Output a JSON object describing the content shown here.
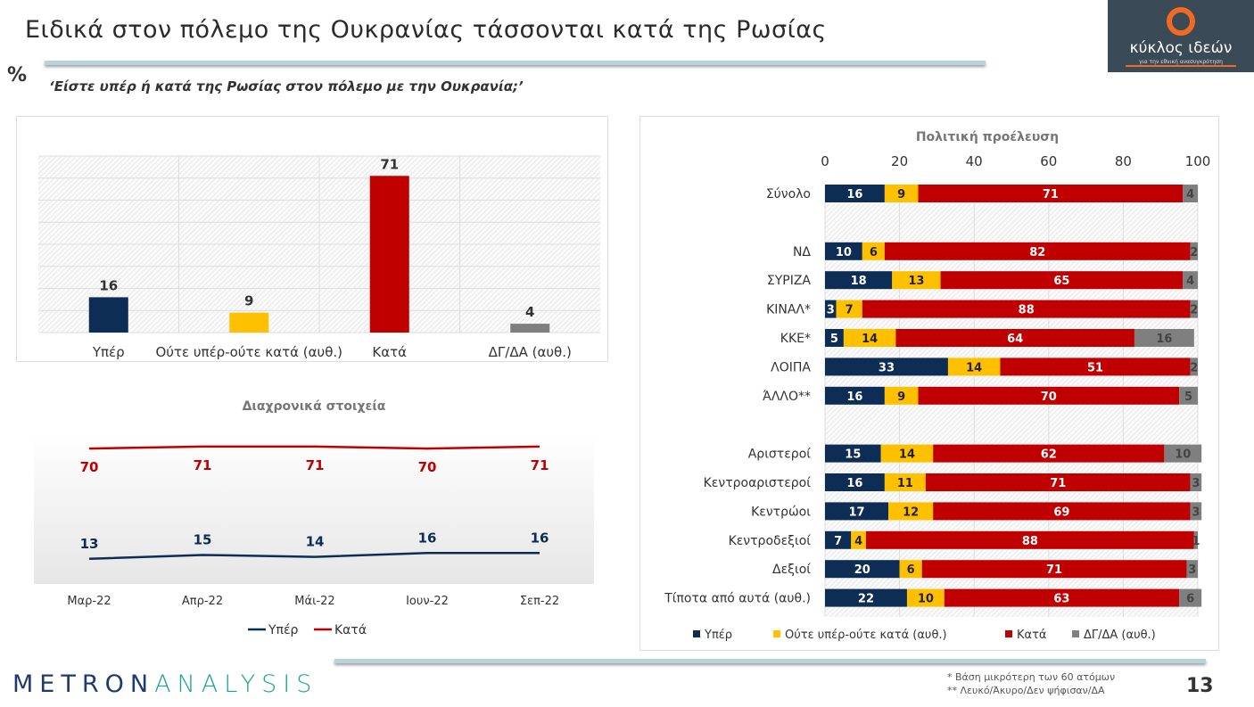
{
  "header": {
    "title": "Ειδικά στον πόλεμο της Ουκρανίας τάσσονται κατά της Ρωσίας",
    "percent_sign": "%",
    "question": "‘Είστε υπέρ ή κατά της Ρωσίας στον πόλεμο με την Ουκρανία;’"
  },
  "logo": {
    "name": "κύκλος ιδεών",
    "tagline": "για την εθνική ανασυγκρότηση"
  },
  "footer": {
    "brand_a": "METRON",
    "brand_b": "ANALYSIS",
    "note1": "*  Βάση μικρότερη των 60 ατόμων",
    "note2": "** Λευκό/Άκυρο/Δεν ψήφισαν/ΔΑ",
    "page_number": "13"
  },
  "colors": {
    "yper": "#0d2d55",
    "oute": "#ffc000",
    "kata": "#c00000",
    "dk": "#7f7f7f"
  },
  "chart_data": [
    {
      "type": "bar",
      "categories": [
        "Υπέρ",
        "Ούτε υπέρ-ούτε κατά (αυθ.)",
        "Κατά",
        "ΔΓ/ΔΑ (αυθ.)"
      ],
      "values": [
        16,
        9,
        71,
        4
      ],
      "ylim": [
        0,
        80
      ],
      "grid": true
    },
    {
      "type": "line",
      "title": "Διαχρονικά στοιχεία",
      "categories": [
        "Μαρ-22",
        "Απρ-22",
        "Μάι-22",
        "Ιουν-22",
        "Σεπ-22"
      ],
      "series": [
        {
          "name": "Υπέρ",
          "values": [
            13,
            15,
            14,
            16,
            16
          ]
        },
        {
          "name": "Κατά",
          "values": [
            70,
            71,
            71,
            70,
            71
          ]
        }
      ],
      "legend": "bottom"
    },
    {
      "type": "bar",
      "orientation": "horizontal",
      "stacked": true,
      "title": "Πολιτική προέλευση",
      "xlim": [
        0,
        100
      ],
      "xticks": [
        "0",
        "20",
        "40",
        "60",
        "80",
        "100"
      ],
      "grid": true,
      "legend": "bottom",
      "series_names": [
        "Υπέρ",
        "Ούτε υπέρ-ούτε κατά (αυθ.)",
        "Κατά",
        "ΔΓ/ΔΑ (αυθ.)"
      ],
      "rows": [
        {
          "label": "Σύνολο",
          "values": [
            16,
            9,
            71,
            4
          ]
        },
        {
          "label": "",
          "values": []
        },
        {
          "label": "ΝΔ",
          "values": [
            10,
            6,
            82,
            2
          ]
        },
        {
          "label": "ΣΥΡΙΖΑ",
          "values": [
            18,
            13,
            65,
            4
          ]
        },
        {
          "label": "ΚΙΝΑΛ*",
          "values": [
            3,
            7,
            88,
            2
          ]
        },
        {
          "label": "ΚΚΕ*",
          "values": [
            5,
            14,
            64,
            16
          ]
        },
        {
          "label": "ΛΟΙΠΑ",
          "values": [
            33,
            14,
            51,
            2
          ]
        },
        {
          "label": "ΆΛΛΟ**",
          "values": [
            16,
            9,
            70,
            5
          ]
        },
        {
          "label": "",
          "values": []
        },
        {
          "label": "Αριστεροί",
          "values": [
            15,
            14,
            62,
            10
          ]
        },
        {
          "label": "Κεντροαριστεροί",
          "values": [
            16,
            11,
            71,
            3
          ]
        },
        {
          "label": "Κεντρώοι",
          "values": [
            17,
            12,
            69,
            3
          ]
        },
        {
          "label": "Κεντροδεξιοί",
          "values": [
            7,
            4,
            88,
            1
          ]
        },
        {
          "label": "Δεξιοί",
          "values": [
            20,
            6,
            71,
            3
          ]
        },
        {
          "label": "Τίποτα από αυτά (αυθ.)",
          "values": [
            22,
            10,
            63,
            6
          ]
        }
      ]
    }
  ]
}
